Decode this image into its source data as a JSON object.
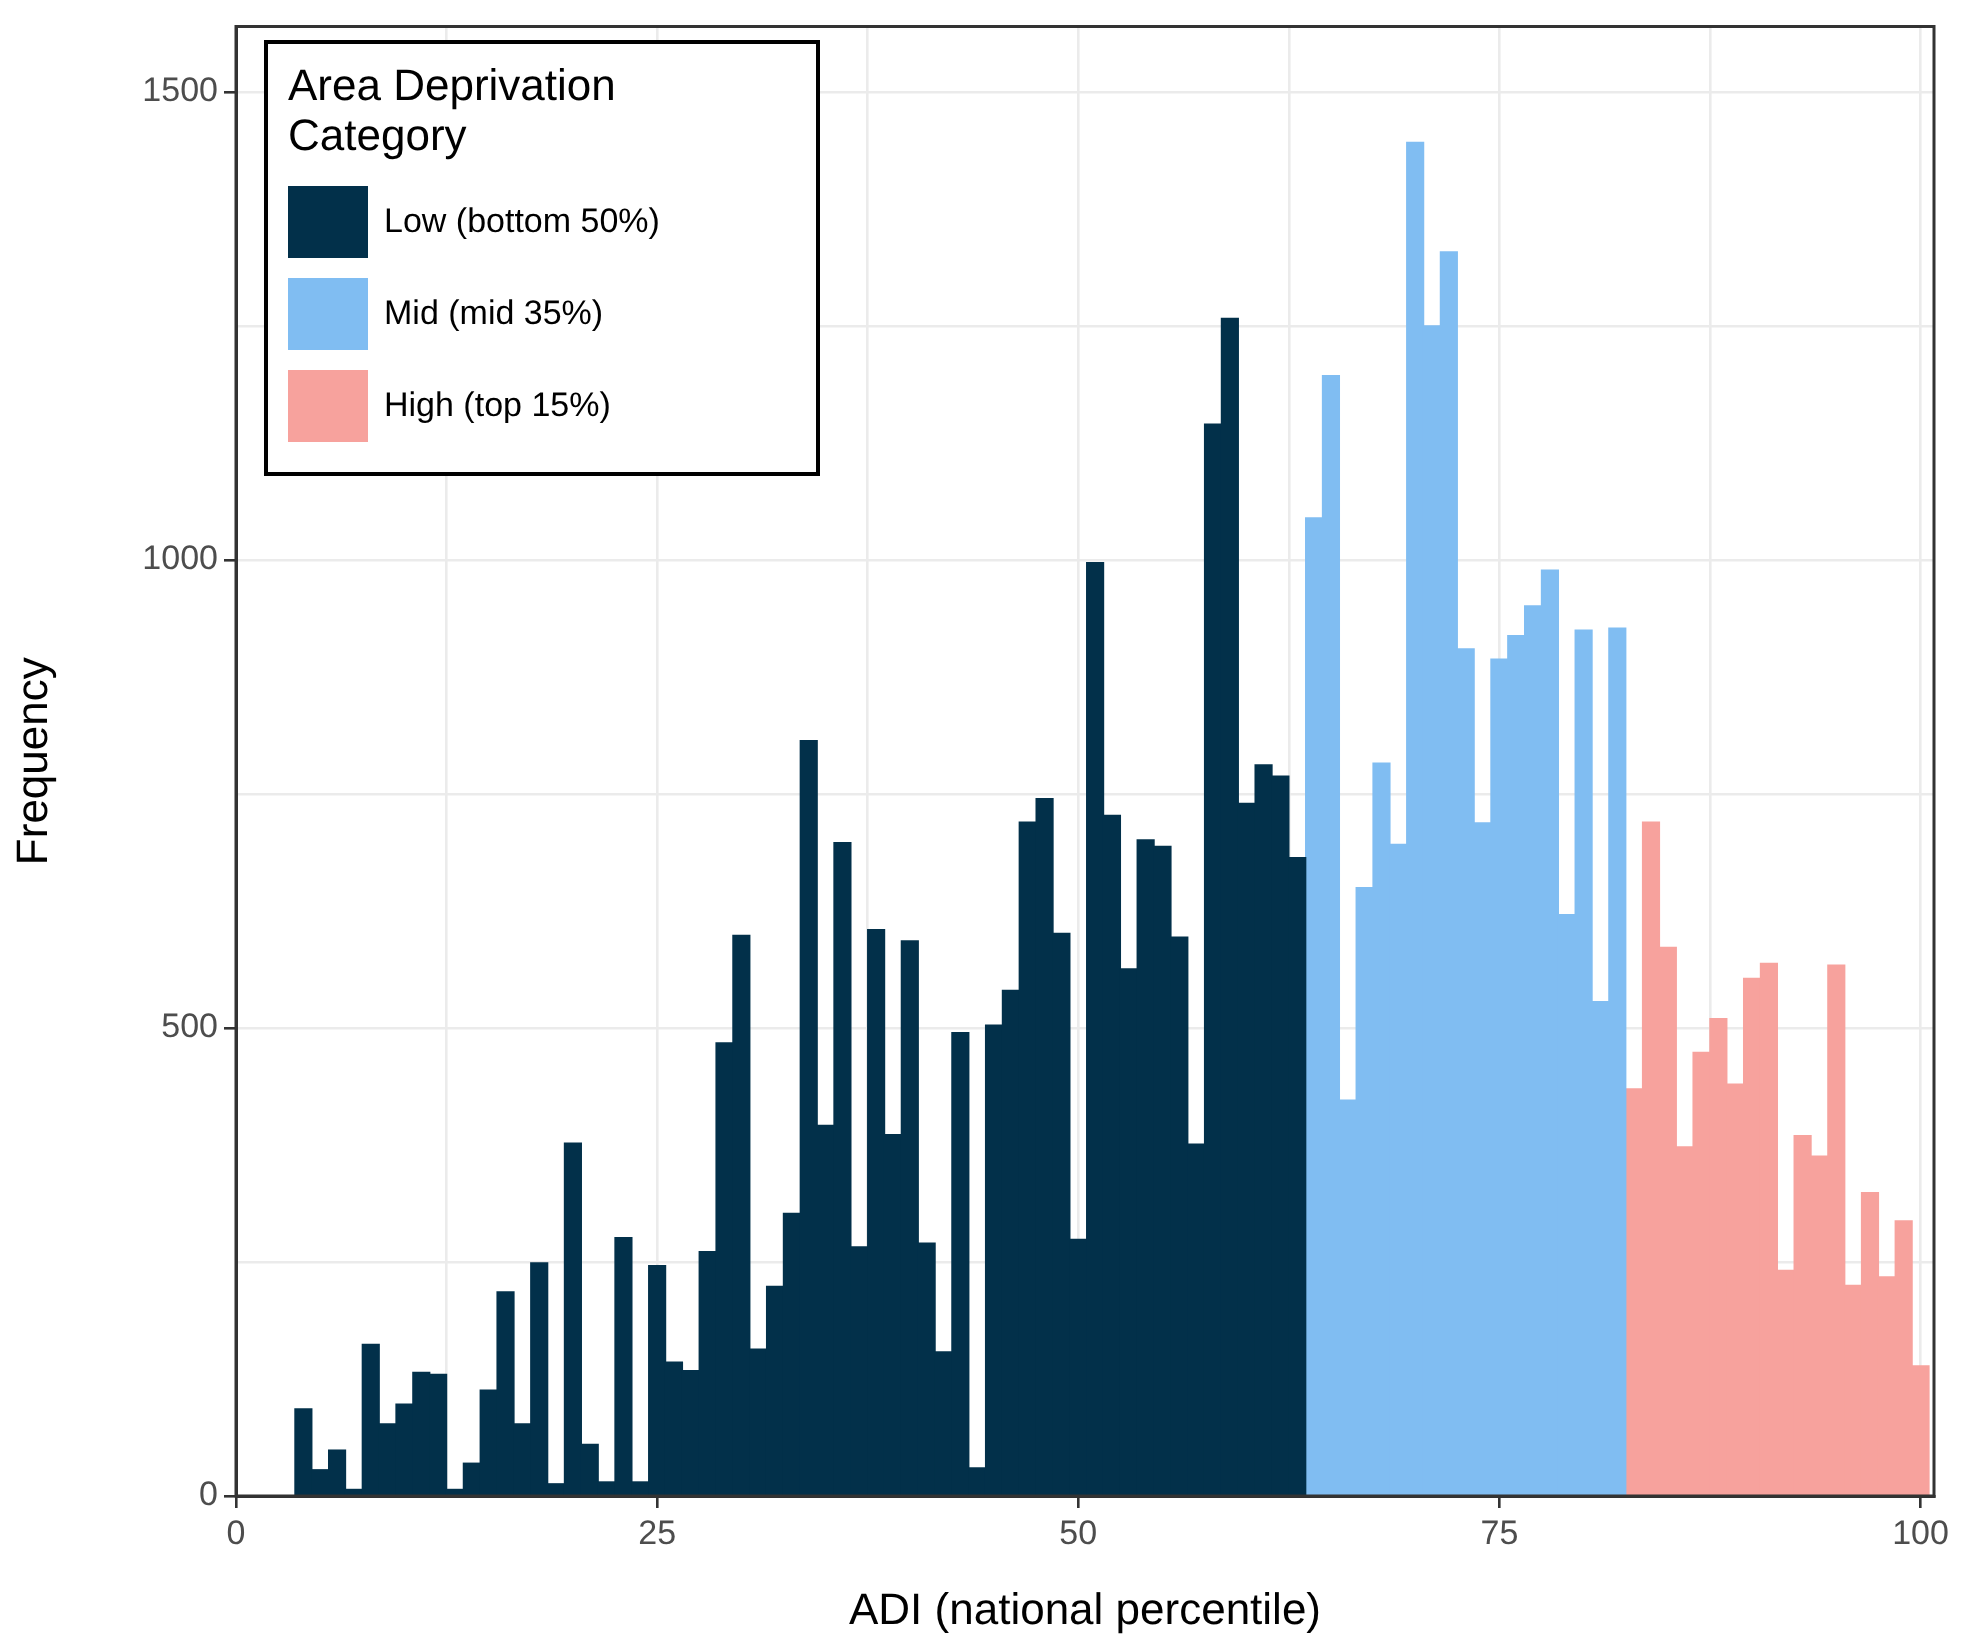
{
  "chart_data": {
    "type": "histogram",
    "xlabel": "ADI (national percentile)",
    "ylabel": "Frequency",
    "legend_title": "Area Deprivation Category",
    "legend": "top left",
    "grid": true,
    "xlim": [
      0,
      100.8
    ],
    "ylim": [
      0,
      1570
    ],
    "xticks": [
      0,
      {
        "value": 12.5,
        "label": null
      },
      25,
      {
        "value": 37.5,
        "label": null
      },
      50,
      {
        "value": 62.5,
        "label": null
      },
      75,
      {
        "value": 87.5,
        "label": null
      },
      100
    ],
    "yticks": [
      0,
      {
        "value": 250,
        "label": null
      },
      500,
      {
        "value": 750,
        "label": null
      },
      1000,
      {
        "value": 1250,
        "label": null
      },
      1500
    ],
    "bins": [
      3.5,
      4.5,
      5.5,
      6.5,
      7.5,
      8.5,
      9.5,
      10.5,
      11.5,
      12.5,
      13.5,
      14.5,
      15.5,
      16.5,
      17.5,
      18.5,
      19.5,
      20.5,
      21.5,
      22.5,
      23.5,
      24.5,
      25.5,
      26.5,
      27.5,
      28.5,
      29.5,
      30.5,
      31.5,
      32.5,
      33.5,
      34.5,
      35.5,
      36.5,
      37.5,
      38.5,
      39.5,
      40.5,
      41.5,
      42.5,
      43.5,
      44.5,
      45.5,
      46.5,
      47.5,
      48.5,
      49.5,
      50.5,
      51.5,
      52.5,
      53.5,
      54.5,
      55.5,
      56.5,
      57.5,
      58.5,
      59.5,
      60.5,
      61.5,
      62.5,
      63.5,
      64.5,
      65.5,
      66.5,
      67.5,
      68.5,
      69.5,
      70.5,
      71.5,
      72.5,
      73.5,
      74.5,
      75.5,
      76.5,
      77.5,
      78.5,
      79.5,
      80.5,
      81.5,
      82.5,
      83.5,
      84.5,
      85.5,
      86.5,
      87.5,
      88.5,
      89.5,
      90.5,
      91.5,
      92.5,
      93.5,
      94.5,
      95.5,
      96.5,
      97.5,
      98.5,
      99.5,
      100.5
    ],
    "series": [
      {
        "name": "Low (bottom 50%)",
        "color": "#02304a",
        "values": [
          93,
          28,
          49,
          7,
          162,
          77,
          98,
          132,
          130,
          7,
          35,
          113,
          218,
          77,
          249,
          13,
          377,
          55,
          15,
          276,
          15,
          246,
          143,
          134,
          261,
          484,
          599,
          157,
          224,
          302,
          807,
          396,
          698,
          266,
          605,
          386,
          593,
          270,
          154,
          495,
          30,
          503,
          540,
          720,
          745,
          601,
          274,
          997,
          727,
          563,
          701,
          694,
          597,
          376,
          1145,
          1258,
          740,
          781,
          769,
          682,
          null,
          null,
          null,
          null,
          null,
          null,
          null,
          null,
          null,
          null,
          null,
          null,
          null,
          null,
          null,
          null,
          null,
          null,
          null,
          null,
          null,
          null,
          null,
          null,
          null,
          null,
          null,
          null,
          null,
          null,
          null,
          null,
          null,
          null,
          null,
          null,
          null
        ]
      },
      {
        "name": "Mid (mid 35%)",
        "color": "#80bdf2",
        "values": [
          null,
          null,
          null,
          null,
          null,
          null,
          null,
          null,
          null,
          null,
          null,
          null,
          null,
          null,
          null,
          null,
          null,
          null,
          null,
          null,
          null,
          null,
          null,
          null,
          null,
          null,
          null,
          null,
          null,
          null,
          null,
          null,
          null,
          null,
          null,
          null,
          null,
          null,
          null,
          null,
          null,
          null,
          null,
          null,
          null,
          null,
          null,
          null,
          null,
          null,
          null,
          null,
          null,
          null,
          null,
          null,
          null,
          null,
          null,
          null,
          1045,
          1197,
          423,
          650,
          783,
          696,
          1446,
          1250,
          1329,
          905,
          719,
          894,
          919,
          951,
          989,
          621,
          925,
          528,
          927,
          null,
          null,
          null,
          null,
          null,
          null,
          null,
          null,
          null,
          null,
          null,
          null,
          null,
          null,
          null,
          null,
          null,
          null
        ]
      },
      {
        "name": "High (top 15%)",
        "color": "#f7a29d",
        "values": [
          null,
          null,
          null,
          null,
          null,
          null,
          null,
          null,
          null,
          null,
          null,
          null,
          null,
          null,
          null,
          null,
          null,
          null,
          null,
          null,
          null,
          null,
          null,
          null,
          null,
          null,
          null,
          null,
          null,
          null,
          null,
          null,
          null,
          null,
          null,
          null,
          null,
          null,
          null,
          null,
          null,
          null,
          null,
          null,
          null,
          null,
          null,
          null,
          null,
          null,
          null,
          null,
          null,
          null,
          null,
          null,
          null,
          null,
          null,
          null,
          null,
          null,
          null,
          null,
          null,
          null,
          null,
          null,
          null,
          null,
          null,
          null,
          null,
          null,
          null,
          null,
          null,
          null,
          null,
          435,
          720,
          586,
          373,
          474,
          510,
          440,
          553,
          569,
          241,
          385,
          363,
          567,
          225,
          324,
          234,
          294,
          139
        ]
      }
    ]
  }
}
